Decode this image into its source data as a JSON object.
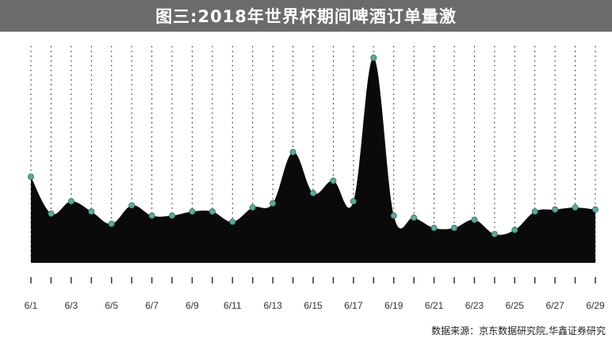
{
  "title": "图三:2018年世界杯期间啤酒订单量激",
  "source": "数据来源：京东数据研究院,华鑫证券研究",
  "colors": {
    "title_bg": "#6b6b6b",
    "area_fill": "#0a0a0a",
    "marker": "#5fa89a",
    "grid": "#444444"
  },
  "chart_data": {
    "type": "area",
    "title": "图三:2018年世界杯期间啤酒订单量激",
    "xlabel": "",
    "ylabel": "",
    "grid": "vertical dashed",
    "x_tick_labels": [
      "6/1",
      "6/3",
      "6/5",
      "6/7",
      "6/9",
      "6/11",
      "6/13",
      "6/15",
      "6/17",
      "6/19",
      "6/21",
      "6/23",
      "6/25",
      "6/27",
      "6/29"
    ],
    "x": [
      "6/1",
      "6/2",
      "6/3",
      "6/4",
      "6/5",
      "6/6",
      "6/7",
      "6/8",
      "6/9",
      "6/10",
      "6/11",
      "6/12",
      "6/13",
      "6/14",
      "6/15",
      "6/16",
      "6/17",
      "6/18",
      "6/19",
      "6/20",
      "6/21",
      "6/22",
      "6/23",
      "6/24",
      "6/25",
      "6/26",
      "6/27",
      "6/28",
      "6/29"
    ],
    "series": [
      {
        "values": [
          42,
          24,
          30,
          25,
          19,
          28,
          23,
          23,
          25,
          25,
          20,
          27,
          29,
          54,
          34,
          40,
          30,
          100,
          23,
          22,
          17,
          17,
          21,
          14,
          16,
          25,
          26,
          27,
          26
        ]
      }
    ],
    "ylim": [
      0,
      105
    ]
  }
}
